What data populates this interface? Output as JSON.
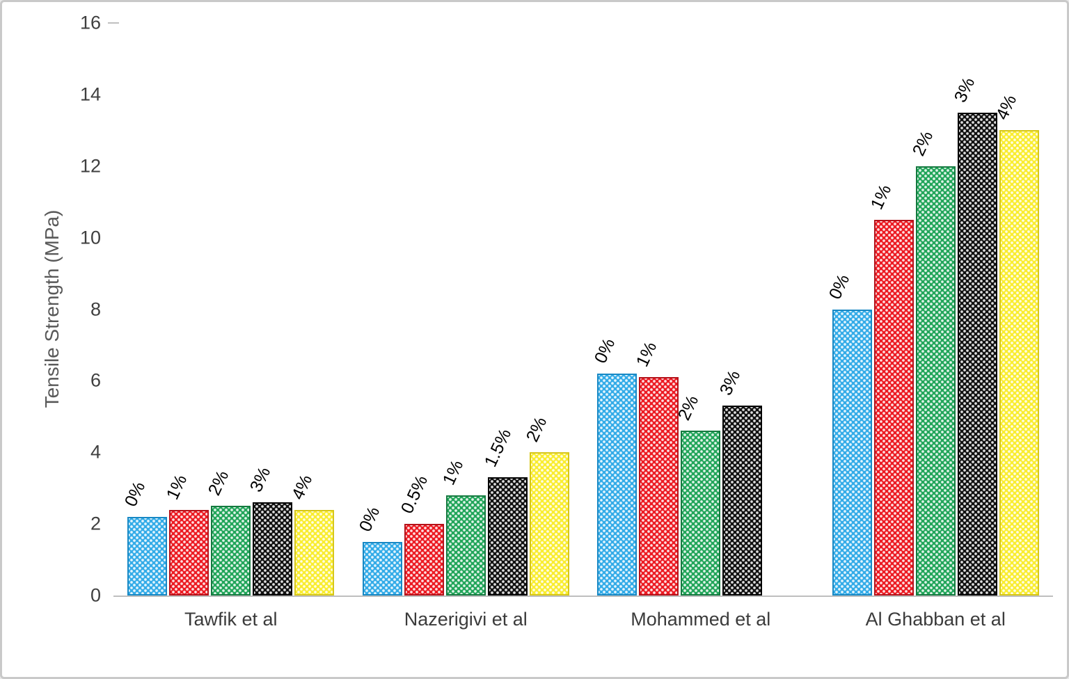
{
  "chart_data": {
    "type": "bar",
    "title": "",
    "xlabel": "",
    "ylabel": "Tensile Strength (MPa)",
    "ylim": [
      0,
      16
    ],
    "ytick_step": 2,
    "grid": false,
    "legend": "none",
    "bar_label_rotation_deg": -65,
    "groups": [
      {
        "label": "Tawfik et al",
        "bars": [
          {
            "label": "0%",
            "value": 2.2,
            "color": "blue"
          },
          {
            "label": "1%",
            "value": 2.4,
            "color": "red"
          },
          {
            "label": "2%",
            "value": 2.5,
            "color": "green"
          },
          {
            "label": "3%",
            "value": 2.6,
            "color": "black"
          },
          {
            "label": "4%",
            "value": 2.4,
            "color": "yellow"
          }
        ]
      },
      {
        "label": "Nazerigivi et al",
        "bars": [
          {
            "label": "0%",
            "value": 1.5,
            "color": "blue"
          },
          {
            "label": "0.5%",
            "value": 2.0,
            "color": "red"
          },
          {
            "label": "1%",
            "value": 2.8,
            "color": "green"
          },
          {
            "label": "1.5%",
            "value": 3.3,
            "color": "black"
          },
          {
            "label": "2%",
            "value": 4.0,
            "color": "yellow"
          }
        ]
      },
      {
        "label": "Mohammed et al",
        "bars": [
          {
            "label": "0%",
            "value": 6.2,
            "color": "blue"
          },
          {
            "label": "1%",
            "value": 6.1,
            "color": "red"
          },
          {
            "label": "2%",
            "value": 4.6,
            "color": "green"
          },
          {
            "label": "3%",
            "value": 5.3,
            "color": "black"
          }
        ]
      },
      {
        "label": "Al Ghabban et al",
        "bars": [
          {
            "label": "0%",
            "value": 8.0,
            "color": "blue"
          },
          {
            "label": "1%",
            "value": 10.5,
            "color": "red"
          },
          {
            "label": "2%",
            "value": 12.0,
            "color": "green"
          },
          {
            "label": "3%",
            "value": 13.5,
            "color": "black"
          },
          {
            "label": "4%",
            "value": 13.0,
            "color": "yellow"
          }
        ]
      }
    ],
    "colors": {
      "blue": {
        "fill": "#35ACE8",
        "border": "#1788C4"
      },
      "red": {
        "fill": "#EC1C24",
        "border": "#B5121A"
      },
      "green": {
        "fill": "#23A65B",
        "border": "#157A40"
      },
      "black": {
        "fill": "#121212",
        "border": "#000000"
      },
      "yellow": {
        "fill": "#F9ED32",
        "border": "#D6C619"
      }
    },
    "axis_color": "#bfbfbf"
  }
}
